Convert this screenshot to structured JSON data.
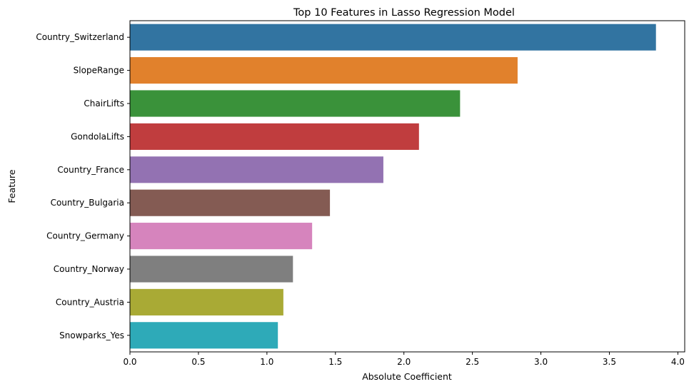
{
  "chart_data": {
    "type": "bar",
    "orientation": "horizontal",
    "title": "Top 10 Features in Lasso Regression Model",
    "xlabel": "Absolute Coefficient",
    "ylabel": "Feature",
    "xlim": [
      0,
      4.05
    ],
    "xticks": [
      0.0,
      0.5,
      1.0,
      1.5,
      2.0,
      2.5,
      3.0,
      3.5,
      4.0
    ],
    "xtick_labels": [
      "0.0",
      "0.5",
      "1.0",
      "1.5",
      "2.0",
      "2.5",
      "3.0",
      "3.5",
      "4.0"
    ],
    "grid": false,
    "categories": [
      "Country_Switzerland",
      "SlopeRange",
      "ChairLifts",
      "GondolaLifts",
      "Country_France",
      "Country_Bulgaria",
      "Country_Germany",
      "Country_Norway",
      "Country_Austria",
      "Snowparks_Yes"
    ],
    "values": [
      3.84,
      2.83,
      2.41,
      2.11,
      1.85,
      1.46,
      1.33,
      1.19,
      1.12,
      1.08
    ],
    "colors": [
      "#3274a1",
      "#e1812c",
      "#3a923a",
      "#c03d3e",
      "#9372b2",
      "#845b53",
      "#d684bd",
      "#7f7f7f",
      "#a9aa35",
      "#2eaab8"
    ]
  }
}
